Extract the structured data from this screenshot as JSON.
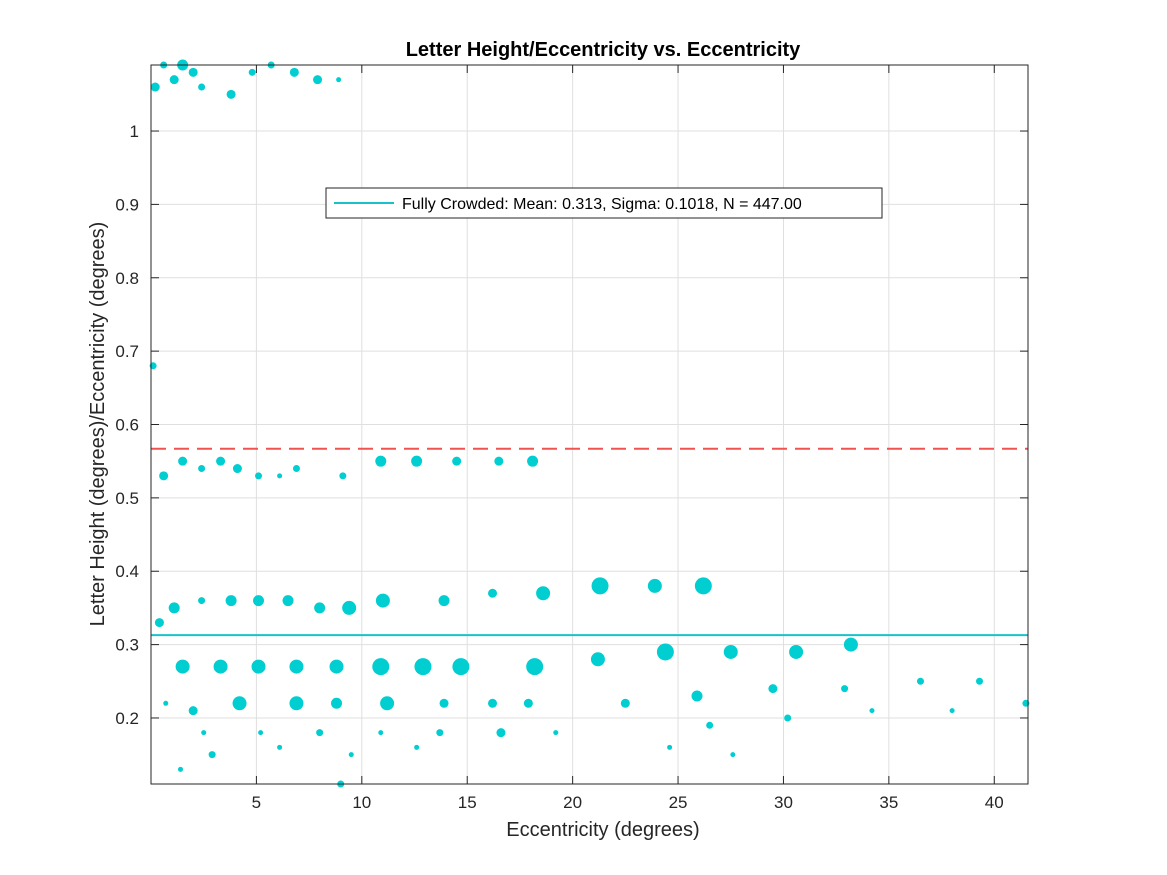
{
  "chart_data": {
    "type": "scatter",
    "title": "Letter Height/Eccentricity vs. Eccentricity",
    "xlabel": "Eccentricity (degrees)",
    "ylabel": "Letter Height (degrees)/Eccentricity (degrees)",
    "xlim": [
      0,
      41.6
    ],
    "ylim": [
      0.11,
      1.09
    ],
    "xticks": [
      5,
      10,
      15,
      20,
      25,
      30,
      35,
      40
    ],
    "yticks": [
      0.2,
      0.3,
      0.4,
      0.5,
      0.6,
      0.7,
      0.8,
      0.9,
      1
    ],
    "ytick_labels": [
      "0.2",
      "0.3",
      "0.4",
      "0.5",
      "0.6",
      "0.7",
      "0.8",
      "0.9",
      "1"
    ],
    "grid": true,
    "legend_position": "upper-center",
    "colors": {
      "points": "#00CED1",
      "mean_line": "#17C3CB",
      "threshold_line": "#EF5350",
      "axis": "#262626",
      "grid": "#DFDFDF"
    },
    "mean_line": {
      "y": 0.313,
      "legend_label": "Fully Crowded: Mean: 0.313, Sigma: 0.1018, N = 447.00"
    },
    "threshold_line": {
      "y": 0.567,
      "style": "dashed"
    },
    "series": [
      {
        "points": [
          [
            0.2,
            1.06,
            3
          ],
          [
            0.6,
            1.09,
            2
          ],
          [
            1.1,
            1.07,
            3
          ],
          [
            1.5,
            1.09,
            4
          ],
          [
            2.0,
            1.08,
            3
          ],
          [
            2.4,
            1.06,
            2
          ],
          [
            3.8,
            1.05,
            3
          ],
          [
            4.8,
            1.08,
            2
          ],
          [
            5.7,
            1.09,
            2
          ],
          [
            6.8,
            1.08,
            3
          ],
          [
            7.9,
            1.07,
            3
          ],
          [
            8.9,
            1.07,
            1
          ],
          [
            0.1,
            0.68,
            2
          ],
          [
            0.6,
            0.53,
            3
          ],
          [
            1.5,
            0.55,
            3
          ],
          [
            2.4,
            0.54,
            2
          ],
          [
            3.3,
            0.55,
            3
          ],
          [
            4.1,
            0.54,
            3
          ],
          [
            5.1,
            0.53,
            2
          ],
          [
            6.1,
            0.53,
            1
          ],
          [
            6.9,
            0.54,
            2
          ],
          [
            9.1,
            0.53,
            2
          ],
          [
            10.9,
            0.55,
            4
          ],
          [
            12.6,
            0.55,
            4
          ],
          [
            14.5,
            0.55,
            3
          ],
          [
            16.5,
            0.55,
            3
          ],
          [
            18.1,
            0.55,
            4
          ],
          [
            0.4,
            0.33,
            3
          ],
          [
            1.1,
            0.35,
            4
          ],
          [
            2.4,
            0.36,
            2
          ],
          [
            3.8,
            0.36,
            4
          ],
          [
            5.1,
            0.36,
            4
          ],
          [
            6.5,
            0.36,
            4
          ],
          [
            8.0,
            0.35,
            4
          ],
          [
            9.4,
            0.35,
            5
          ],
          [
            11.0,
            0.36,
            5
          ],
          [
            13.9,
            0.36,
            4
          ],
          [
            16.2,
            0.37,
            3
          ],
          [
            18.6,
            0.37,
            5
          ],
          [
            21.3,
            0.38,
            6
          ],
          [
            23.9,
            0.38,
            5
          ],
          [
            26.2,
            0.38,
            6
          ],
          [
            1.5,
            0.27,
            5
          ],
          [
            3.3,
            0.27,
            5
          ],
          [
            5.1,
            0.27,
            5
          ],
          [
            6.9,
            0.27,
            5
          ],
          [
            8.8,
            0.27,
            5
          ],
          [
            10.9,
            0.27,
            6
          ],
          [
            12.9,
            0.27,
            6
          ],
          [
            14.7,
            0.27,
            6
          ],
          [
            18.2,
            0.27,
            6
          ],
          [
            21.2,
            0.28,
            5
          ],
          [
            24.4,
            0.29,
            6
          ],
          [
            27.5,
            0.29,
            5
          ],
          [
            30.6,
            0.29,
            5
          ],
          [
            33.2,
            0.3,
            5
          ],
          [
            0.7,
            0.22,
            1
          ],
          [
            2.0,
            0.21,
            3
          ],
          [
            4.2,
            0.22,
            5
          ],
          [
            6.9,
            0.22,
            5
          ],
          [
            8.8,
            0.22,
            4
          ],
          [
            11.2,
            0.22,
            5
          ],
          [
            13.9,
            0.22,
            3
          ],
          [
            16.2,
            0.22,
            3
          ],
          [
            17.9,
            0.22,
            3
          ],
          [
            22.5,
            0.22,
            3
          ],
          [
            25.9,
            0.23,
            4
          ],
          [
            29.5,
            0.24,
            3
          ],
          [
            32.9,
            0.24,
            2
          ],
          [
            36.5,
            0.25,
            2
          ],
          [
            39.3,
            0.25,
            2
          ],
          [
            26.5,
            0.19,
            2
          ],
          [
            30.2,
            0.2,
            2
          ],
          [
            34.2,
            0.21,
            1
          ],
          [
            38.0,
            0.21,
            1
          ],
          [
            41.5,
            0.22,
            2
          ],
          [
            2.5,
            0.18,
            1
          ],
          [
            5.2,
            0.18,
            1
          ],
          [
            8.0,
            0.18,
            2
          ],
          [
            10.9,
            0.18,
            1
          ],
          [
            13.7,
            0.18,
            2
          ],
          [
            16.6,
            0.18,
            3
          ],
          [
            19.2,
            0.18,
            1
          ],
          [
            2.9,
            0.15,
            2
          ],
          [
            9.5,
            0.15,
            1
          ],
          [
            27.6,
            0.15,
            1
          ],
          [
            6.1,
            0.16,
            1
          ],
          [
            12.6,
            0.16,
            1
          ],
          [
            24.6,
            0.16,
            1
          ],
          [
            1.4,
            0.13,
            1
          ],
          [
            9.0,
            0.11,
            2
          ]
        ]
      }
    ]
  }
}
